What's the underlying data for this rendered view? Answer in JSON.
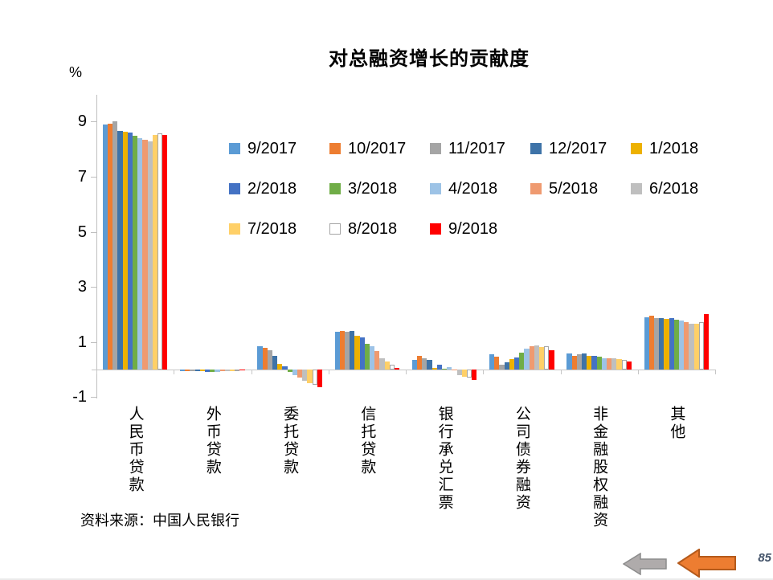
{
  "chart": {
    "source": "资料来源：中国人民银行"
  },
  "chart_data": {
    "type": "bar",
    "title": "对总融资增长的贡献度",
    "ylabel": "%",
    "xlabel": "",
    "ylim": [
      -1.1,
      10.0
    ],
    "y_ticks": [
      9,
      7,
      5,
      3,
      1,
      -1
    ],
    "grid": false,
    "legend_position": "inside-top",
    "axis_color": "#BFBFBF",
    "categories": [
      "人民币贷款",
      "外币贷款",
      "委托贷款",
      "信托贷款",
      "银行承兑汇票",
      "公司债券融资",
      "非金融股权融资",
      "其他"
    ],
    "series": [
      {
        "name": "9/2017",
        "color": "#5B9BD5",
        "values": [
          8.9,
          -0.07,
          0.86,
          1.37,
          0.36,
          0.56,
          0.57,
          1.9
        ]
      },
      {
        "name": "10/2017",
        "color": "#ED7D31",
        "values": [
          8.93,
          -0.07,
          0.8,
          1.39,
          0.51,
          0.46,
          0.51,
          1.95
        ]
      },
      {
        "name": "11/2017",
        "color": "#A5A5A5",
        "values": [
          9.0,
          -0.07,
          0.7,
          1.37,
          0.41,
          0.17,
          0.54,
          1.87
        ]
      },
      {
        "name": "12/2017",
        "color": "#3E73A8",
        "values": [
          8.65,
          -0.07,
          0.5,
          1.41,
          0.35,
          0.27,
          0.57,
          1.87
        ]
      },
      {
        "name": "1/2018",
        "color": "#EDB100",
        "values": [
          8.63,
          -0.07,
          0.2,
          1.21,
          0.05,
          0.37,
          0.51,
          1.85
        ]
      },
      {
        "name": "2/2018",
        "color": "#4472C4",
        "values": [
          8.6,
          -0.08,
          0.12,
          1.16,
          0.18,
          0.43,
          0.51,
          1.86
        ]
      },
      {
        "name": "3/2018",
        "color": "#70AD47",
        "values": [
          8.47,
          -0.1,
          -0.1,
          0.93,
          0.02,
          0.61,
          0.47,
          1.8
        ]
      },
      {
        "name": "4/2018",
        "color": "#9DC3E6",
        "values": [
          8.4,
          -0.08,
          -0.2,
          0.86,
          0.08,
          0.76,
          0.41,
          1.78
        ]
      },
      {
        "name": "5/2018",
        "color": "#EF9A70",
        "values": [
          8.33,
          -0.07,
          -0.3,
          0.66,
          -0.03,
          0.86,
          0.41,
          1.72
        ]
      },
      {
        "name": "6/2018",
        "color": "#BFBFBF",
        "values": [
          8.28,
          -0.05,
          -0.4,
          0.42,
          -0.2,
          0.88,
          0.41,
          1.67
        ]
      },
      {
        "name": "7/2018",
        "color": "#FFD068",
        "values": [
          8.5,
          -0.05,
          -0.5,
          0.29,
          -0.25,
          0.83,
          0.37,
          1.65
        ]
      },
      {
        "name": "8/2018",
        "color": "#FFFFFF",
        "border": "#A5A5A5",
        "values": [
          8.57,
          -0.03,
          -0.55,
          0.18,
          -0.29,
          0.85,
          0.34,
          1.72
        ]
      },
      {
        "name": "9/2018",
        "color": "#FF0000",
        "values": [
          8.52,
          -0.04,
          -0.65,
          0.05,
          -0.37,
          0.71,
          0.29,
          2.0
        ]
      }
    ]
  },
  "footer": {
    "page_number": "85",
    "nav_arrows": [
      {
        "name": "back-arrow-gray",
        "fill": "#AFABAB",
        "stroke": "#8C8C8C"
      },
      {
        "name": "back-arrow-orange",
        "fill": "#ED7D31",
        "stroke": "#B55A1B"
      }
    ]
  }
}
